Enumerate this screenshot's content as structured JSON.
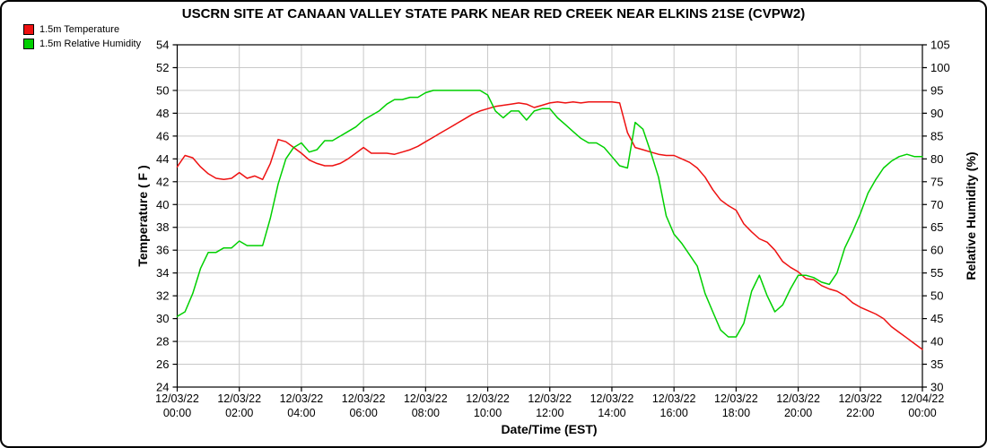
{
  "chart_data": {
    "type": "line",
    "title": "USCRN SITE AT CANAAN VALLEY STATE PARK NEAR RED CREEK NEAR ELKINS 21SE (CVPW2)",
    "xlabel": "Date/Time (EST)",
    "ylabel_left": "Temperature ( F )",
    "ylabel_right": "Relative Humidity (%)",
    "grid": true,
    "legend_position": "top-left",
    "left_axis": {
      "min": 24,
      "max": 54,
      "tick_step": 2,
      "ticks": [
        54,
        52,
        50,
        48,
        46,
        44,
        42,
        40,
        38,
        36,
        34,
        32,
        30,
        28,
        26,
        24
      ]
    },
    "right_axis": {
      "min": 30,
      "max": 105,
      "tick_step": 5,
      "ticks": [
        105,
        100,
        95,
        90,
        85,
        80,
        75,
        70,
        65,
        60,
        55,
        50,
        45,
        40,
        35,
        30
      ]
    },
    "x_axis": {
      "start_hour": 0,
      "end_hour": 24,
      "sample_step_hours": 0.25,
      "tick_labels": [
        {
          "date": "12/03/22",
          "time": "00:00"
        },
        {
          "date": "12/03/22",
          "time": "02:00"
        },
        {
          "date": "12/03/22",
          "time": "04:00"
        },
        {
          "date": "12/03/22",
          "time": "06:00"
        },
        {
          "date": "12/03/22",
          "time": "08:00"
        },
        {
          "date": "12/03/22",
          "time": "10:00"
        },
        {
          "date": "12/03/22",
          "time": "12:00"
        },
        {
          "date": "12/03/22",
          "time": "14:00"
        },
        {
          "date": "12/03/22",
          "time": "16:00"
        },
        {
          "date": "12/03/22",
          "time": "18:00"
        },
        {
          "date": "12/03/22",
          "time": "20:00"
        },
        {
          "date": "12/03/22",
          "time": "22:00"
        },
        {
          "date": "12/04/22",
          "time": "00:00"
        }
      ]
    },
    "series": [
      {
        "name": "1.5m Temperature",
        "axis": "left",
        "unit": "F",
        "color": "#ee1111",
        "values": [
          43.3,
          44.3,
          44.1,
          43.3,
          42.7,
          42.3,
          42.2,
          42.3,
          42.8,
          42.3,
          42.5,
          42.2,
          43.6,
          45.7,
          45.5,
          45.0,
          44.5,
          43.9,
          43.6,
          43.4,
          43.4,
          43.6,
          44.0,
          44.5,
          45.0,
          44.5,
          44.5,
          44.5,
          44.4,
          44.6,
          44.8,
          45.1,
          45.5,
          45.9,
          46.3,
          46.7,
          47.1,
          47.5,
          47.9,
          48.2,
          48.4,
          48.6,
          48.7,
          48.8,
          48.9,
          48.8,
          48.5,
          48.7,
          48.9,
          49.0,
          48.9,
          49.0,
          48.9,
          49.0,
          49.0,
          49.0,
          49.0,
          48.9,
          46.3,
          45.0,
          44.8,
          44.6,
          44.4,
          44.3,
          44.3,
          44.0,
          43.7,
          43.2,
          42.4,
          41.3,
          40.4,
          39.9,
          39.5,
          38.3,
          37.6,
          37.0,
          36.7,
          36.0,
          35.0,
          34.5,
          34.1,
          33.5,
          33.4,
          32.9,
          32.6,
          32.4,
          32.0,
          31.4,
          31.0,
          30.7,
          30.4,
          30.0,
          29.3,
          28.8,
          28.3,
          27.8,
          27.3
        ]
      },
      {
        "name": "1.5m Relative Humidity",
        "axis": "right",
        "unit": "%",
        "color": "#00d000",
        "values": [
          45.5,
          46.5,
          50.5,
          56.0,
          59.5,
          59.5,
          60.5,
          60.5,
          62.0,
          61.0,
          61.0,
          61.0,
          67.0,
          74.5,
          80.0,
          82.5,
          83.5,
          81.5,
          82.0,
          84.0,
          84.0,
          85.0,
          86.0,
          87.0,
          88.5,
          89.5,
          90.5,
          92.0,
          93.0,
          93.0,
          93.5,
          93.5,
          94.5,
          95.0,
          95.0,
          95.0,
          95.0,
          95.0,
          95.0,
          95.0,
          94.0,
          90.5,
          89.0,
          90.5,
          90.5,
          88.5,
          90.5,
          91.0,
          91.0,
          89.0,
          87.5,
          86.0,
          84.5,
          83.5,
          83.5,
          82.5,
          80.5,
          78.5,
          78.0,
          88.0,
          86.5,
          81.5,
          76.0,
          67.5,
          63.5,
          61.5,
          59.0,
          56.5,
          50.5,
          46.5,
          42.5,
          41.0,
          41.0,
          44.0,
          51.0,
          54.5,
          50.0,
          46.5,
          48.0,
          51.5,
          54.5,
          54.5,
          54.0,
          53.0,
          52.5,
          55.0,
          60.5,
          64.0,
          68.0,
          72.5,
          75.5,
          78.0,
          79.5,
          80.5,
          81.0,
          80.5,
          80.5
        ]
      }
    ]
  }
}
